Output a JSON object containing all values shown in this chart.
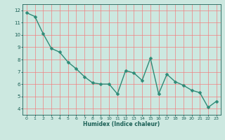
{
  "x": [
    0,
    1,
    2,
    3,
    4,
    5,
    6,
    7,
    8,
    9,
    10,
    11,
    12,
    13,
    14,
    15,
    16,
    17,
    18,
    19,
    20,
    21,
    22,
    23
  ],
  "y": [
    11.8,
    11.5,
    10.1,
    8.9,
    8.6,
    7.8,
    7.25,
    6.6,
    6.1,
    6.0,
    6.0,
    5.2,
    7.1,
    6.9,
    6.3,
    8.1,
    5.2,
    6.8,
    6.2,
    5.9,
    5.5,
    5.3,
    4.1,
    4.6
  ],
  "line_color": "#2e8b77",
  "marker_color": "#2e8b77",
  "bg_color": "#cce8e0",
  "grid_color": "#f08080",
  "xlabel": "Humidex (Indice chaleur)",
  "xlabel_color": "#1a5f55",
  "tick_color": "#1a5f55",
  "ylim": [
    3.5,
    12.5
  ],
  "xlim": [
    -0.5,
    23.5
  ],
  "yticks": [
    4,
    5,
    6,
    7,
    8,
    9,
    10,
    11,
    12
  ],
  "xticks": [
    0,
    1,
    2,
    3,
    4,
    5,
    6,
    7,
    8,
    9,
    10,
    11,
    12,
    13,
    14,
    15,
    16,
    17,
    18,
    19,
    20,
    21,
    22,
    23
  ],
  "linewidth": 1.0,
  "markersize": 2.5
}
